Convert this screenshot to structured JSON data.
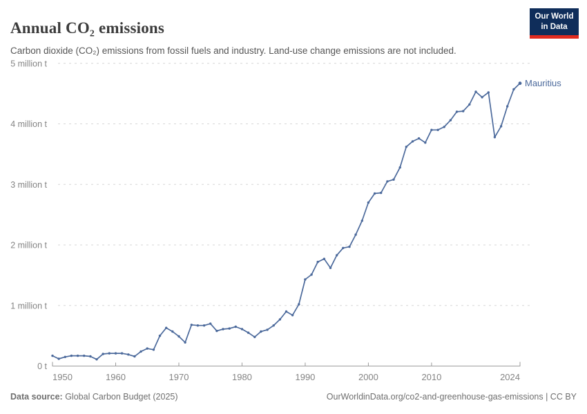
{
  "header": {
    "title": "Annual CO₂ emissions",
    "subtitle": "Carbon dioxide (CO₂) emissions from fossil fuels and industry. Land-use change emissions are not included.",
    "logo": {
      "line1": "Our World",
      "line2": "in Data"
    }
  },
  "footer": {
    "source_label": "Data source:",
    "source_text": " Global Carbon Budget (2025)",
    "attribution": "OurWorldinData.org/co2-and-greenhouse-gas-emissions | CC BY"
  },
  "colors": {
    "line": "#4b699b",
    "series_label": "#4b699b",
    "grid": "#d6d6d6",
    "axis": "#999999",
    "tick_text": "#848484",
    "title_text": "#3b3b3b",
    "subtitle_text": "#555555",
    "footer_text": "#6e6e6e",
    "logo_bg": "#0f2d5a",
    "logo_red": "#e02b1f"
  },
  "chart_data": {
    "type": "line",
    "title": "Annual CO₂ emissions",
    "subtitle": "Carbon dioxide (CO₂) emissions from fossil fuels and industry. Land-use change emissions are not included.",
    "unit": "million tonnes CO₂",
    "grid": "horizontal dashed",
    "legend_position": "end-of-line label",
    "series_label": "Mauritius",
    "xlim": [
      1950,
      2024
    ],
    "ylim": [
      0,
      5
    ],
    "yticks": [
      {
        "value": 0,
        "label": "0 t"
      },
      {
        "value": 1,
        "label": "1 million t"
      },
      {
        "value": 2,
        "label": "2 million t"
      },
      {
        "value": 3,
        "label": "3 million t"
      },
      {
        "value": 4,
        "label": "4 million t"
      },
      {
        "value": 5,
        "label": "5 million t"
      }
    ],
    "xticks": [
      {
        "value": 1950,
        "label": "1950"
      },
      {
        "value": 1960,
        "label": "1960"
      },
      {
        "value": 1970,
        "label": "1970"
      },
      {
        "value": 1980,
        "label": "1980"
      },
      {
        "value": 1990,
        "label": "1990"
      },
      {
        "value": 2000,
        "label": "2000"
      },
      {
        "value": 2010,
        "label": "2010"
      },
      {
        "value": 2024,
        "label": "2024"
      }
    ],
    "x": [
      1950,
      1951,
      1952,
      1953,
      1954,
      1955,
      1956,
      1957,
      1958,
      1959,
      1960,
      1961,
      1962,
      1963,
      1964,
      1965,
      1966,
      1967,
      1968,
      1969,
      1970,
      1971,
      1972,
      1973,
      1974,
      1975,
      1976,
      1977,
      1978,
      1979,
      1980,
      1981,
      1982,
      1983,
      1984,
      1985,
      1986,
      1987,
      1988,
      1989,
      1990,
      1991,
      1992,
      1993,
      1994,
      1995,
      1996,
      1997,
      1998,
      1999,
      2000,
      2001,
      2002,
      2003,
      2004,
      2005,
      2006,
      2007,
      2008,
      2009,
      2010,
      2011,
      2012,
      2013,
      2014,
      2015,
      2016,
      2017,
      2018,
      2019,
      2020,
      2021,
      2022,
      2023,
      2024
    ],
    "series": [
      {
        "name": "Mauritius",
        "values": [
          0.17,
          0.12,
          0.15,
          0.17,
          0.17,
          0.17,
          0.16,
          0.11,
          0.2,
          0.21,
          0.21,
          0.21,
          0.19,
          0.16,
          0.24,
          0.29,
          0.27,
          0.5,
          0.63,
          0.57,
          0.49,
          0.39,
          0.68,
          0.67,
          0.67,
          0.7,
          0.58,
          0.61,
          0.62,
          0.65,
          0.61,
          0.55,
          0.48,
          0.57,
          0.6,
          0.67,
          0.77,
          0.9,
          0.84,
          1.02,
          1.43,
          1.51,
          1.72,
          1.77,
          1.62,
          1.83,
          1.95,
          1.97,
          2.17,
          2.4,
          2.7,
          2.85,
          2.86,
          3.05,
          3.08,
          3.28,
          3.62,
          3.71,
          3.76,
          3.69,
          3.9,
          3.9,
          3.95,
          4.06,
          4.2,
          4.21,
          4.32,
          4.53,
          4.44,
          4.52,
          3.78,
          3.96,
          4.29,
          4.57,
          4.67
        ]
      }
    ]
  }
}
